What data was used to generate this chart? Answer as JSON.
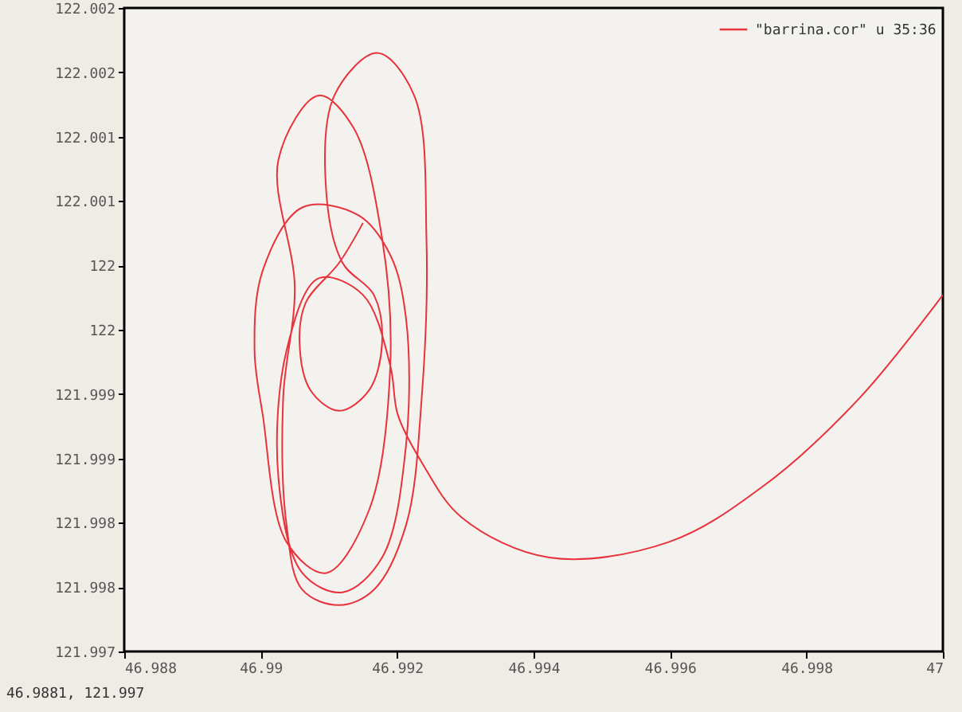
{
  "chart_data": {
    "type": "line",
    "annotations": [
      "46.9881, 121.997"
    ],
    "series": [
      {
        "name": "\"barrina.cor\" u 35:36",
        "color": "#e8323c",
        "x": [
          46.9915,
          46.99115,
          46.99066,
          46.99057,
          46.99073,
          46.99115,
          46.99159,
          46.99178,
          46.99166,
          46.9912,
          46.99096,
          46.99108,
          46.99171,
          46.99225,
          46.99243,
          46.99236,
          46.99213,
          46.99166,
          46.99115,
          46.99061,
          46.99038,
          46.99033,
          46.9905,
          46.99026,
          46.99085,
          46.99136,
          46.99178,
          46.9919,
          46.99159,
          46.99096,
          46.99038,
          46.99003,
          46.98991,
          46.99003,
          46.99061,
          46.99143,
          46.9919,
          46.99213,
          46.99213,
          46.99178,
          46.9912,
          46.99061,
          46.99026,
          46.99038,
          46.99085,
          46.9915,
          46.9919,
          46.99201,
          46.99236,
          46.99295,
          46.99423,
          46.99598,
          46.99738,
          46.99878,
          47.0
        ],
        "values": [
          122.00033,
          122.00002,
          121.99971,
          121.9994,
          121.99903,
          121.99887,
          121.99903,
          121.9994,
          121.99977,
          122.00002,
          122.00058,
          122.00132,
          122.00165,
          122.00132,
          122.00021,
          121.99897,
          121.99798,
          121.99748,
          121.99736,
          121.99748,
          121.99798,
          121.99897,
          121.99983,
          122.00082,
          122.00132,
          122.00107,
          122.00021,
          121.99922,
          121.9981,
          121.99761,
          121.99785,
          121.99884,
          121.99934,
          121.99996,
          122.00045,
          122.00039,
          122.00008,
          121.99959,
          121.9986,
          121.99773,
          121.99746,
          121.99761,
          121.99835,
          121.99934,
          121.9999,
          121.99977,
          121.99922,
          121.99884,
          121.99847,
          121.99804,
          121.99773,
          121.99785,
          121.99829,
          121.99897,
          121.99977
        ]
      }
    ],
    "xlim": [
      46.988,
      47.0
    ],
    "xticks": [
      46.988,
      46.99,
      46.992,
      46.994,
      46.996,
      46.998,
      47
    ],
    "ylim": [
      121.997,
      122.002
    ],
    "yticks": [
      {
        "value": 121.997,
        "label": "121.997"
      },
      {
        "value": 121.9975,
        "label": "121.998"
      },
      {
        "value": 121.998,
        "label": "121.998"
      },
      {
        "value": 121.9985,
        "label": "121.999"
      },
      {
        "value": 121.999,
        "label": "121.999"
      },
      {
        "value": 121.9995,
        "label": "122"
      },
      {
        "value": 122.0,
        "label": "122"
      },
      {
        "value": 122.0005,
        "label": "122.001"
      },
      {
        "value": 122.001,
        "label": "122.001"
      },
      {
        "value": 122.0015,
        "label": "122.002"
      },
      {
        "value": 122.002,
        "label": "122.002"
      }
    ],
    "grid": false,
    "legend": "top right",
    "marker": "none",
    "line_style": "solid"
  }
}
